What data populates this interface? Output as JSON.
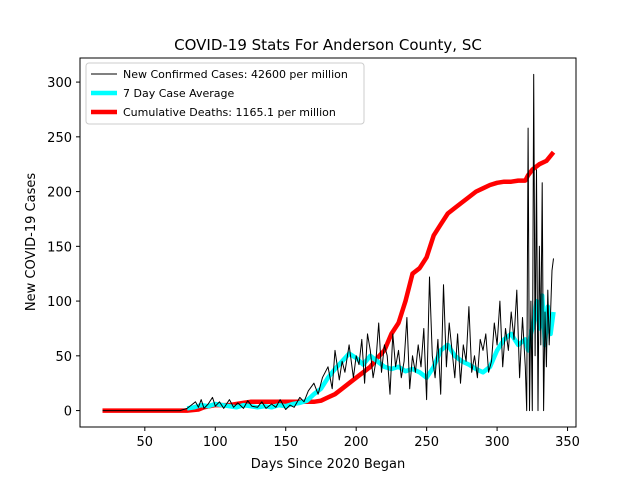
{
  "chart_data": {
    "type": "line",
    "title": "COVID-19 Stats For Anderson County, SC",
    "xlabel": "Days Since 2020 Began",
    "ylabel": "New COVID-19 Cases",
    "xlim": [
      4,
      356
    ],
    "ylim": [
      -15,
      322
    ],
    "xticks": [
      50,
      100,
      150,
      200,
      250,
      300,
      350
    ],
    "yticks": [
      0,
      50,
      100,
      150,
      200,
      250,
      300
    ],
    "grid": false,
    "legend_position": "upper-left",
    "series": [
      {
        "name": "New Confirmed Cases: 42600 per million",
        "color": "#000000",
        "style": "thin-line",
        "x": [
          20,
          40,
          60,
          75,
          80,
          83,
          86,
          88,
          90,
          92,
          95,
          98,
          100,
          103,
          106,
          110,
          113,
          116,
          120,
          123,
          126,
          130,
          133,
          136,
          140,
          143,
          146,
          150,
          153,
          156,
          160,
          163,
          166,
          170,
          173,
          176,
          180,
          183,
          185,
          188,
          190,
          192,
          195,
          198,
          200,
          202,
          204,
          206,
          208,
          210,
          212,
          214,
          216,
          218,
          220,
          222,
          224,
          226,
          228,
          230,
          232,
          234,
          236,
          238,
          240,
          242,
          244,
          246,
          248,
          250,
          252,
          254,
          256,
          258,
          260,
          262,
          264,
          266,
          268,
          270,
          272,
          274,
          276,
          278,
          280,
          282,
          284,
          286,
          288,
          290,
          292,
          294,
          296,
          298,
          300,
          302,
          304,
          306,
          308,
          310,
          312,
          314,
          316,
          318,
          320,
          321,
          322,
          323,
          324,
          325,
          326,
          327,
          328,
          329,
          330,
          331,
          332,
          333,
          334,
          335,
          336,
          337,
          338,
          339,
          340
        ],
        "y": [
          0,
          0,
          0,
          0,
          2,
          5,
          8,
          3,
          10,
          2,
          6,
          12,
          4,
          8,
          2,
          10,
          3,
          7,
          2,
          9,
          4,
          3,
          8,
          2,
          6,
          3,
          10,
          1,
          5,
          3,
          12,
          8,
          18,
          25,
          15,
          30,
          40,
          20,
          55,
          28,
          45,
          35,
          60,
          30,
          50,
          42,
          65,
          25,
          70,
          55,
          30,
          45,
          80,
          35,
          60,
          50,
          15,
          70,
          40,
          55,
          30,
          45,
          85,
          20,
          50,
          35,
          60,
          40,
          75,
          10,
          122,
          50,
          30,
          65,
          15,
          115,
          40,
          80,
          55,
          30,
          70,
          25,
          60,
          45,
          95,
          35,
          50,
          30,
          65,
          55,
          70,
          35,
          45,
          80,
          60,
          100,
          40,
          75,
          55,
          90,
          65,
          110,
          30,
          85,
          40,
          0,
          258,
          0,
          100,
          0,
          307,
          50,
          220,
          0,
          150,
          60,
          208,
          0,
          90,
          40,
          110,
          60,
          90,
          128,
          139
        ]
      },
      {
        "name": "7 Day Case Average",
        "color": "#00ffff",
        "style": "thick-line",
        "x": [
          80,
          85,
          90,
          95,
          100,
          105,
          110,
          115,
          120,
          125,
          130,
          135,
          140,
          145,
          150,
          155,
          160,
          165,
          170,
          175,
          180,
          185,
          190,
          195,
          200,
          205,
          210,
          215,
          220,
          225,
          230,
          235,
          240,
          245,
          250,
          255,
          260,
          265,
          270,
          275,
          280,
          285,
          290,
          295,
          300,
          305,
          310,
          315,
          320,
          322,
          324,
          326,
          328,
          330,
          332,
          334,
          336,
          338,
          340
        ],
        "y": [
          2,
          3,
          5,
          4,
          6,
          5,
          4,
          3,
          5,
          4,
          3,
          4,
          3,
          5,
          4,
          6,
          7,
          9,
          15,
          20,
          30,
          38,
          45,
          52,
          48,
          42,
          50,
          45,
          40,
          38,
          40,
          36,
          38,
          35,
          30,
          40,
          55,
          60,
          50,
          45,
          42,
          38,
          35,
          40,
          55,
          65,
          70,
          60,
          65,
          55,
          70,
          80,
          100,
          75,
          105,
          60,
          95,
          70,
          90
        ]
      },
      {
        "name": "Cumulative Deaths: 1165.1 per million",
        "color": "#ff0000",
        "style": "thick-line",
        "x": [
          20,
          40,
          60,
          80,
          88,
          92,
          96,
          100,
          105,
          110,
          115,
          120,
          125,
          130,
          135,
          140,
          145,
          150,
          155,
          160,
          165,
          170,
          175,
          180,
          185,
          190,
          195,
          200,
          205,
          210,
          215,
          220,
          225,
          230,
          235,
          240,
          245,
          250,
          255,
          260,
          265,
          270,
          275,
          280,
          285,
          290,
          295,
          300,
          305,
          310,
          315,
          320,
          322,
          325,
          330,
          335,
          340
        ],
        "y": [
          0,
          0,
          0,
          0,
          1,
          3,
          4,
          5,
          5,
          5,
          6,
          7,
          8,
          8,
          8,
          8,
          8,
          8,
          8,
          8,
          8,
          8,
          9,
          12,
          15,
          20,
          25,
          30,
          35,
          40,
          48,
          55,
          70,
          80,
          100,
          125,
          130,
          140,
          160,
          170,
          180,
          185,
          190,
          195,
          200,
          203,
          206,
          208,
          209,
          209,
          210,
          210,
          215,
          220,
          225,
          228,
          236
        ]
      }
    ]
  }
}
